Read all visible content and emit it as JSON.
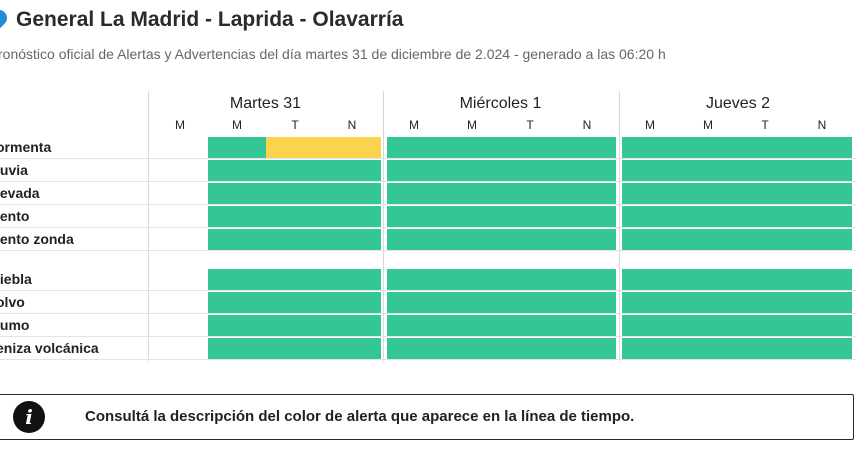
{
  "header": {
    "title": "General La Madrid - Laprida - Olavarría",
    "subtitle": "ronóstico oficial de Alertas y Advertencias del día martes 31 de diciembre de 2.024 - generado a las 06:20 h",
    "pin_icon": "location-pin-icon",
    "pin_color": "#1f8fd6"
  },
  "days": [
    {
      "label": "Martes 31",
      "slots": [
        "M",
        "M",
        "T",
        "N"
      ]
    },
    {
      "label": "Miércoles 1",
      "slots": [
        "M",
        "M",
        "T",
        "N"
      ]
    },
    {
      "label": "Jueves 2",
      "slots": [
        "M",
        "M",
        "T",
        "N"
      ]
    }
  ],
  "groups": [
    {
      "rows": [
        {
          "label": "ormenta",
          "levels": [
            "none",
            "green",
            "yellow",
            "yellow",
            "green",
            "green",
            "green",
            "green",
            "green",
            "green",
            "green",
            "green"
          ]
        },
        {
          "label": "luvia",
          "levels": [
            "none",
            "green",
            "green",
            "green",
            "green",
            "green",
            "green",
            "green",
            "green",
            "green",
            "green",
            "green"
          ]
        },
        {
          "label": "levada",
          "levels": [
            "none",
            "green",
            "green",
            "green",
            "green",
            "green",
            "green",
            "green",
            "green",
            "green",
            "green",
            "green"
          ]
        },
        {
          "label": "iento",
          "levels": [
            "none",
            "green",
            "green",
            "green",
            "green",
            "green",
            "green",
            "green",
            "green",
            "green",
            "green",
            "green"
          ]
        },
        {
          "label": "iento zonda",
          "levels": [
            "none",
            "green",
            "green",
            "green",
            "green",
            "green",
            "green",
            "green",
            "green",
            "green",
            "green",
            "green"
          ]
        }
      ]
    },
    {
      "rows": [
        {
          "label": "liebla",
          "levels": [
            "none",
            "green",
            "green",
            "green",
            "green",
            "green",
            "green",
            "green",
            "green",
            "green",
            "green",
            "green"
          ]
        },
        {
          "label": "olvo",
          "levels": [
            "none",
            "green",
            "green",
            "green",
            "green",
            "green",
            "green",
            "green",
            "green",
            "green",
            "green",
            "green"
          ]
        },
        {
          "label": "lumo",
          "levels": [
            "none",
            "green",
            "green",
            "green",
            "green",
            "green",
            "green",
            "green",
            "green",
            "green",
            "green",
            "green"
          ]
        },
        {
          "label": "eniza volcánica",
          "levels": [
            "none",
            "green",
            "green",
            "green",
            "green",
            "green",
            "green",
            "green",
            "green",
            "green",
            "green",
            "green"
          ]
        }
      ]
    }
  ],
  "colors": {
    "green": "#34c693",
    "yellow": "#fcd34d"
  },
  "info": {
    "icon": "info-icon",
    "icon_glyph": "i",
    "text": "Consultá la descripción del color de alerta que aparece en la línea de tiempo."
  }
}
